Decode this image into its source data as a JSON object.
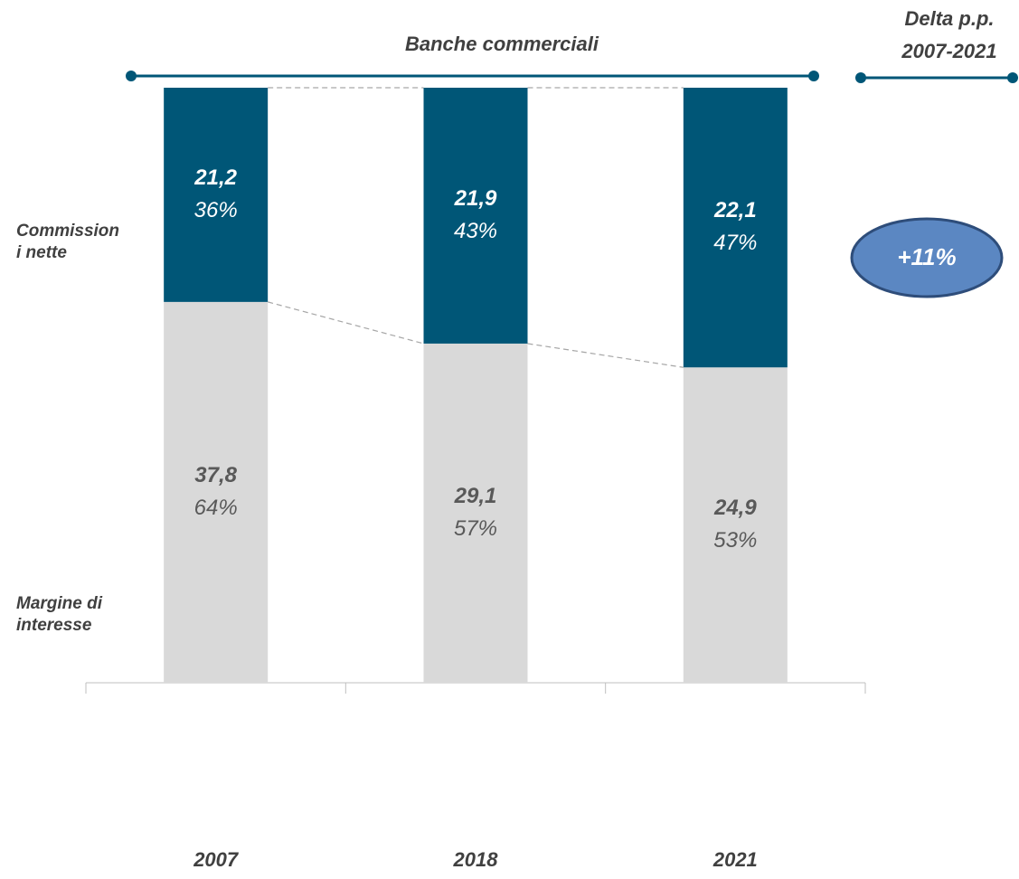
{
  "chart_data": {
    "type": "bar",
    "stacked": true,
    "title": "Banche commerciali",
    "categories": [
      "2007",
      "2018",
      "2021"
    ],
    "ylim": [
      0,
      100
    ],
    "series": [
      {
        "name": "Margine di interesse",
        "color": "#d9d9d9",
        "text_color": "#595959",
        "values": [
          64,
          57,
          53
        ],
        "value_labels": [
          "64%",
          "57%",
          "53%"
        ],
        "amount_labels": [
          "37,8",
          "29,1",
          "24,9"
        ]
      },
      {
        "name": "Commissioni nette",
        "color": "#005677",
        "text_color": "#ffffff",
        "values": [
          36,
          43,
          47
        ],
        "value_labels": [
          "36%",
          "43%",
          "47%"
        ],
        "amount_labels": [
          "21,2",
          "21,9",
          "22,1"
        ]
      }
    ],
    "delta": {
      "title_lines": [
        "Delta p.p.",
        "2007-2021"
      ],
      "label": "+11%"
    }
  }
}
